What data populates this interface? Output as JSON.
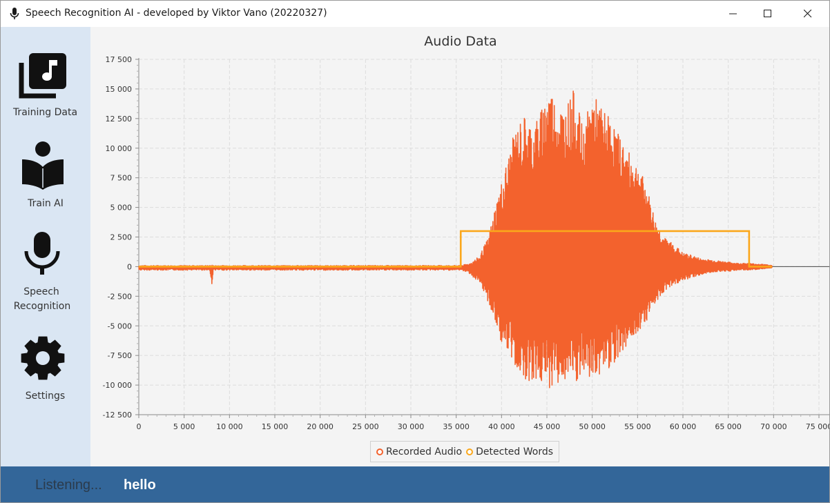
{
  "window": {
    "title": "Speech Recognition AI - developed by Viktor Vano (20220327)",
    "icons": {
      "app": "microphone-icon",
      "minimize": "minimize-icon",
      "maximize": "maximize-icon",
      "close": "close-icon"
    }
  },
  "sidebar": {
    "items": [
      {
        "label": "Training Data",
        "icon": "music-library-icon"
      },
      {
        "label": "Train AI",
        "icon": "reading-person-icon"
      },
      {
        "label": "Speech Recognition",
        "label_lines": [
          "Speech",
          "Recognition"
        ],
        "icon": "microphone-icon"
      },
      {
        "label": "Settings",
        "icon": "gear-icon"
      }
    ]
  },
  "colors": {
    "sidebar_bg": "#dae6f3",
    "chart_bg": "#f4f4f4",
    "status_bg": "#336699",
    "recorded_audio": "#f3622d",
    "detected_words": "#fba71b"
  },
  "chart_data": {
    "type": "line",
    "title": "Audio Data",
    "xlim": [
      0,
      75000
    ],
    "ylim": [
      -12500,
      17500
    ],
    "x_ticks": [
      0,
      5000,
      10000,
      15000,
      20000,
      25000,
      30000,
      35000,
      40000,
      45000,
      50000,
      55000,
      60000,
      65000,
      70000,
      75000
    ],
    "x_tick_labels": [
      "0",
      "5 000",
      "10 000",
      "15 000",
      "20 000",
      "25 000",
      "30 000",
      "35 000",
      "40 000",
      "45 000",
      "50 000",
      "55 000",
      "60 000",
      "65 000",
      "70 000",
      "75 000"
    ],
    "y_ticks": [
      17500,
      15000,
      12500,
      10000,
      7500,
      5000,
      2500,
      0,
      -2500,
      -5000,
      -7500,
      -10000,
      -12500
    ],
    "y_tick_labels": [
      "17 500",
      "15 000",
      "12 500",
      "10 000",
      "7 500",
      "5 000",
      "2 500",
      "0",
      "-2 500",
      "-5 000",
      "-7 500",
      "-10 000",
      "-12 500"
    ],
    "grid": true,
    "legend": "bottom",
    "series": [
      {
        "name": "Recorded Audio",
        "color": "#f3622d",
        "envelope": {
          "x": [
            0,
            7800,
            8000,
            8200,
            35500,
            36500,
            37500,
            38500,
            39500,
            40500,
            41500,
            42500,
            43500,
            44500,
            45200,
            46000,
            47000,
            48000,
            49000,
            50000,
            51000,
            52000,
            53000,
            54000,
            55000,
            56000,
            57000,
            58000,
            59000,
            60000,
            61000,
            62000,
            63000,
            64000,
            65000,
            66000,
            67000,
            68000,
            69000,
            69800
          ],
          "upper": [
            100,
            100,
            300,
            100,
            100,
            300,
            900,
            2500,
            6000,
            9000,
            12000,
            13300,
            12500,
            14000,
            16200,
            14500,
            14000,
            15500,
            12000,
            15200,
            14000,
            13000,
            11500,
            10000,
            9000,
            7000,
            4000,
            2500,
            2000,
            1200,
            1000,
            700,
            600,
            500,
            400,
            300,
            300,
            250,
            200,
            100
          ],
          "lower": [
            -300,
            -300,
            -1700,
            -300,
            -300,
            -600,
            -1500,
            -3000,
            -5500,
            -7500,
            -8500,
            -9500,
            -9800,
            -10000,
            -10300,
            -10000,
            -9800,
            -10200,
            -9500,
            -9700,
            -9000,
            -8500,
            -7500,
            -6500,
            -5500,
            -4500,
            -3000,
            -2000,
            -1500,
            -1200,
            -900,
            -700,
            -500,
            -400,
            -400,
            -300,
            -300,
            -250,
            -200,
            -100
          ]
        }
      },
      {
        "name": "Detected Words",
        "color": "#fba71b",
        "x": [
          0,
          35500,
          35500,
          67300,
          67300,
          69800
        ],
        "y": [
          0,
          0,
          3000,
          3000,
          0,
          0
        ]
      }
    ]
  },
  "status": {
    "state": "Listening...",
    "word": "hello"
  }
}
